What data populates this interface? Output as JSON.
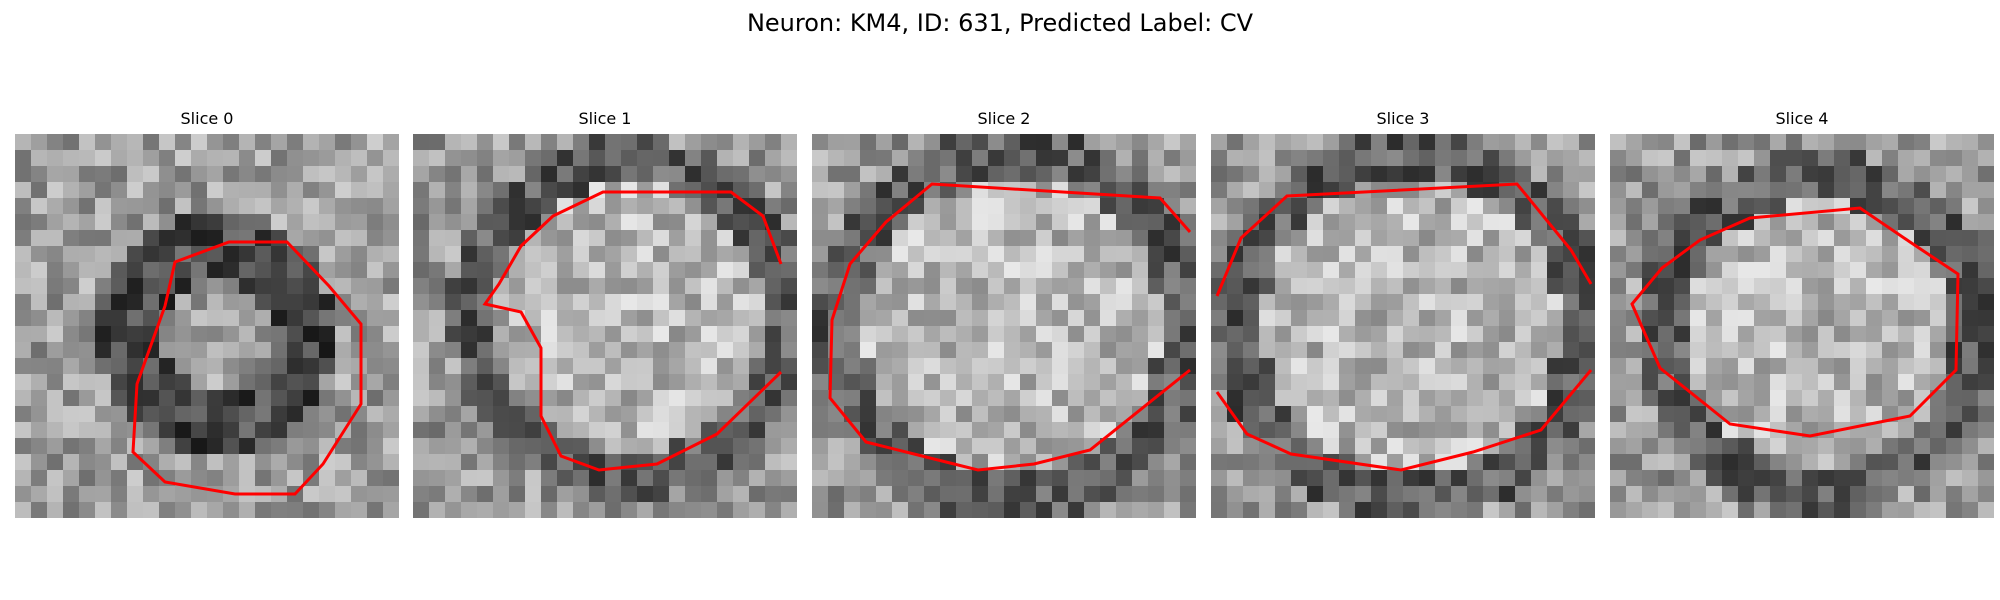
{
  "figure": {
    "title": "Neuron: KM4, ID: 631, Predicted Label: CV",
    "outline_color": "#ff0000"
  },
  "panels": [
    {
      "title": "Slice 0"
    },
    {
      "title": "Slice 1"
    },
    {
      "title": "Slice 2"
    },
    {
      "title": "Slice 3"
    },
    {
      "title": "Slice 4"
    }
  ]
}
